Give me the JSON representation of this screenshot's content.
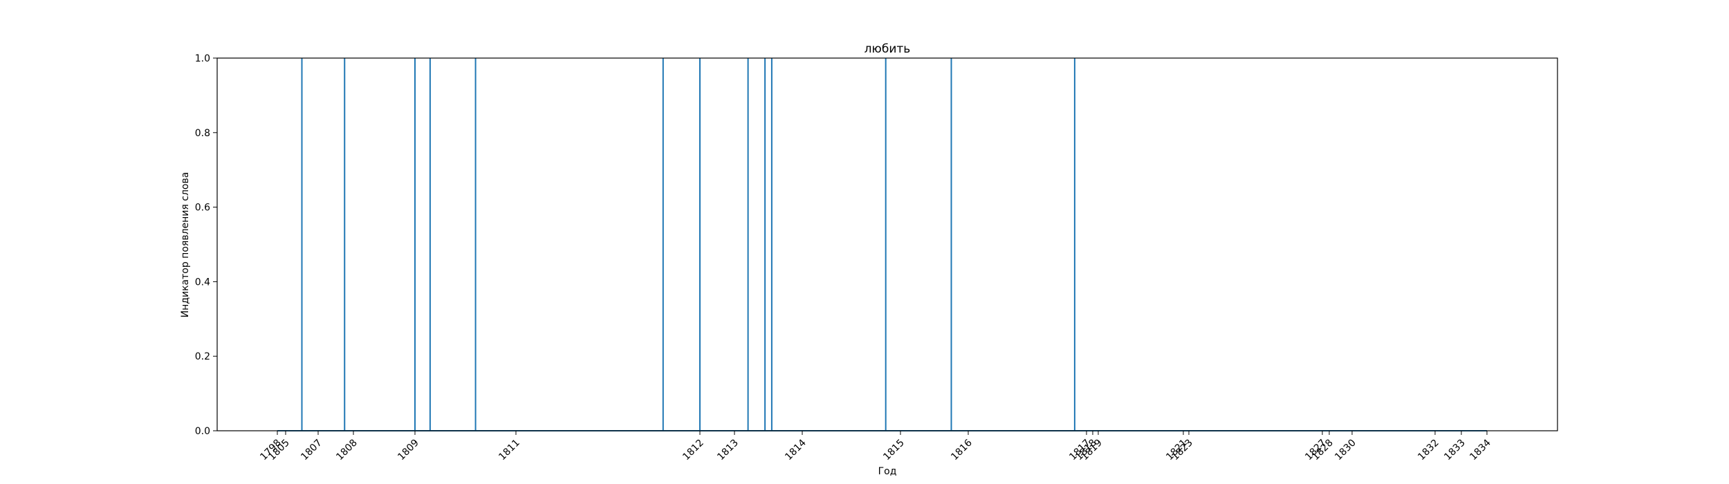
{
  "chart_data": {
    "type": "line",
    "title": "любить",
    "xlabel": "Год",
    "ylabel": "Индикатор появления слова",
    "ylim": [
      0,
      1
    ],
    "y_ticks": [
      0.0,
      0.2,
      0.4,
      0.6,
      0.8,
      1.0
    ],
    "y_tick_labels": [
      "0.0",
      "0.2",
      "0.4",
      "0.6",
      "0.8",
      "1.0"
    ],
    "x_ticks": [
      1798,
      1805,
      1807,
      1808,
      1809,
      1811,
      1812,
      1813,
      1814,
      1815,
      1816,
      1817,
      1818,
      1819,
      1821,
      1823,
      1827,
      1828,
      1830,
      1832,
      1833,
      1834
    ],
    "x_tick_labels": [
      "1798",
      "1805",
      "1807",
      "1808",
      "1809",
      "1811",
      "1812",
      "1813",
      "1814",
      "1815",
      "1816",
      "1817",
      "1818",
      "1819",
      "1821",
      "1823",
      "1827",
      "1828",
      "1830",
      "1832",
      "1833",
      "1834"
    ],
    "series_color": "#1f77b4",
    "grid": false,
    "occurrence_years": [
      1806.0,
      1807.75,
      1809.0,
      1809.3,
      1810.2,
      1811.8,
      1812.0,
      1813.2,
      1813.45,
      1813.55,
      1814.85,
      1815.75,
      1816.9
    ]
  }
}
